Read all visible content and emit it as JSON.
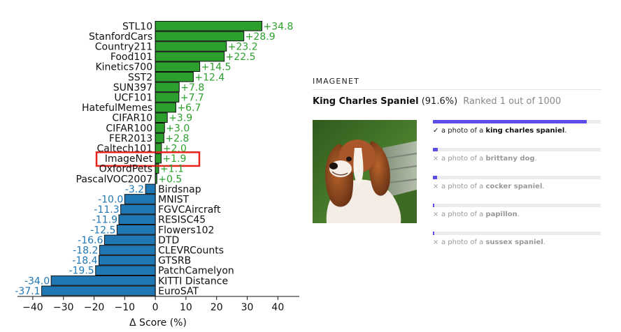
{
  "chart_data": {
    "type": "bar",
    "orientation": "horizontal",
    "categories": [
      "STL10",
      "StanfordCars",
      "Country211",
      "Food101",
      "Kinetics700",
      "SST2",
      "SUN397",
      "UCF101",
      "HatefulMemes",
      "CIFAR10",
      "CIFAR100",
      "FER2013",
      "Caltech101",
      "ImageNet",
      "OxfordPets",
      "PascalVOC2007",
      "Birdsnap",
      "MNIST",
      "FGVCAircraft",
      "RESISC45",
      "Flowers102",
      "DTD",
      "CLEVRCounts",
      "GTSRB",
      "PatchCamelyon",
      "KITTI Distance",
      "EuroSAT"
    ],
    "values": [
      34.8,
      28.9,
      23.2,
      22.5,
      14.5,
      12.4,
      7.8,
      7.7,
      6.7,
      3.9,
      3.0,
      2.8,
      2.0,
      1.9,
      1.1,
      0.5,
      -3.2,
      -10.0,
      -11.3,
      -11.9,
      -12.5,
      -16.6,
      -18.2,
      -18.4,
      -19.5,
      -34.0,
      -37.1
    ],
    "value_labels": [
      "+34.8",
      "+28.9",
      "+23.2",
      "+22.5",
      "+14.5",
      "+12.4",
      "+7.8",
      "+7.7",
      "+6.7",
      "+3.9",
      "+3.0",
      "+2.8",
      "+2.0",
      "+1.9",
      "+1.1",
      "+0.5",
      "-3.2",
      "-10.0",
      "-11.3",
      "-11.9",
      "-12.5",
      "-16.6",
      "-18.2",
      "-18.4",
      "-19.5",
      "-34.0",
      "-37.1"
    ],
    "xlabel": "Δ Score (%)",
    "ylabel": "",
    "title": "",
    "xlim": [
      -45,
      47
    ],
    "xticks": [
      -40,
      -30,
      -20,
      -10,
      0,
      10,
      20,
      30,
      40
    ],
    "xtick_labels": [
      "−40",
      "−30",
      "−20",
      "−10",
      "0",
      "10",
      "20",
      "30",
      "40"
    ],
    "highlighted_category": "ImageNet",
    "grid": false,
    "colors": {
      "positive_bar": "#2ca02c",
      "positive_label": "#2ca02c",
      "negative_bar": "#1f77b4",
      "negative_label": "#1f77b4",
      "bar_edge": "#111111",
      "highlight_box": "#e8231b"
    }
  },
  "panel": {
    "section_label": "IMAGENET",
    "prediction_label": "King Charles Spaniel",
    "prediction_confidence": "(91.6%)",
    "rank_text": "Ranked 1 out of 1000",
    "image_icon": "dog-photo",
    "captions": [
      {
        "prefix": "a photo of a ",
        "class_name": "king charles spaniel",
        "suffix": ".",
        "score": 0.916,
        "correct": true,
        "mark_icon": "check-icon",
        "mark": "✓"
      },
      {
        "prefix": "a photo of a ",
        "class_name": "brittany dog",
        "suffix": ".",
        "score": 0.03,
        "correct": false,
        "mark_icon": "cross-icon",
        "mark": "×"
      },
      {
        "prefix": "a photo of a ",
        "class_name": "cocker spaniel",
        "suffix": ".",
        "score": 0.025,
        "correct": false,
        "mark_icon": "cross-icon",
        "mark": "×"
      },
      {
        "prefix": "a photo of a ",
        "class_name": "papillon",
        "suffix": ".",
        "score": 0.006,
        "correct": false,
        "mark_icon": "cross-icon",
        "mark": "×"
      },
      {
        "prefix": "a photo of a ",
        "class_name": "sussex spaniel",
        "suffix": ".",
        "score": 0.004,
        "correct": false,
        "mark_icon": "cross-icon",
        "mark": "×"
      }
    ],
    "colors": {
      "bar_fill": "#5b4ee8",
      "bar_track": "#ececee"
    }
  }
}
